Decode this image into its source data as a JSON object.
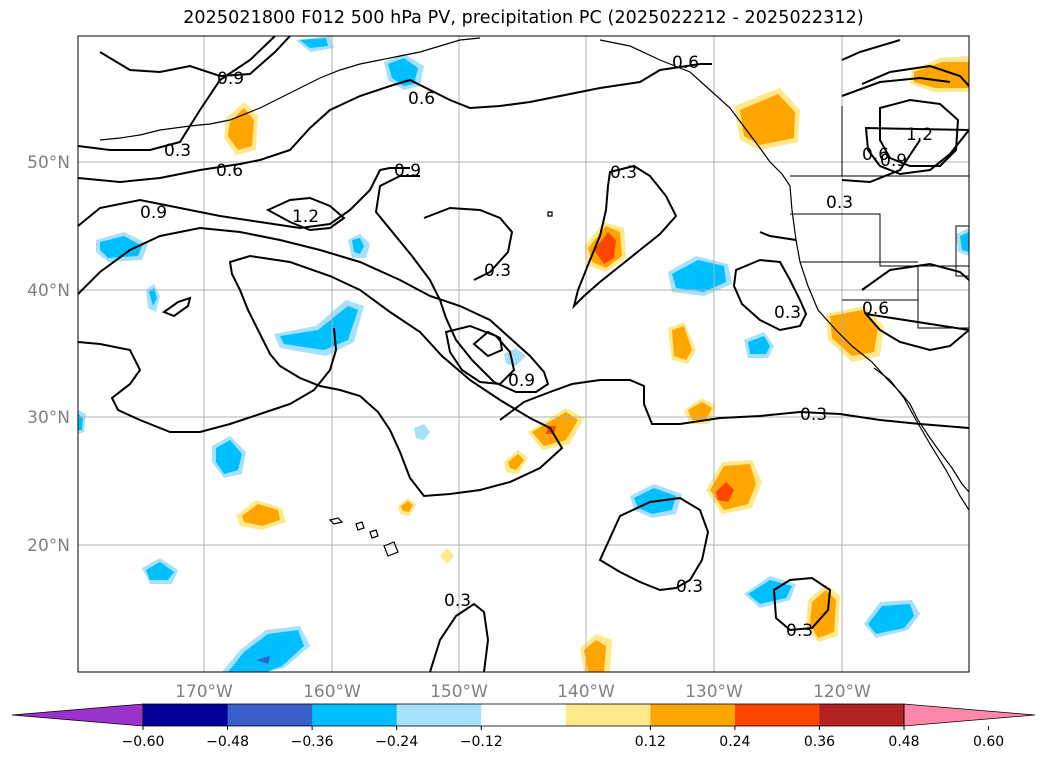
{
  "title": "2025021800 F012 500 hPa PV, precipitation PC (2025022212 - 2025022312)",
  "lat_labels": [
    "50°N",
    "40°N",
    "30°N",
    "20°N"
  ],
  "lon_labels": [
    "170°W",
    "160°W",
    "150°W",
    "140°W",
    "130°W",
    "120°W"
  ],
  "colorbar": {
    "colors": [
      "#9933cc",
      "#000099",
      "#3a5fcd",
      "#00bfff",
      "#a6e0fa",
      "#ffffff",
      "#ffe98c",
      "#ffa500",
      "#ff4500",
      "#b22222",
      "#ff88aa"
    ],
    "tick_labels": [
      "−0.60",
      "−0.48",
      "−0.36",
      "−0.24",
      "−0.12",
      "0.12",
      "0.24",
      "0.36",
      "0.48",
      "0.60"
    ]
  },
  "contour_labels": [
    "0.9",
    "0.3",
    "0.6",
    "0.9",
    "1.2",
    "0.6",
    "0.9",
    "0.3",
    "0.9",
    "0.3",
    "0.6",
    "0.6",
    "0.9",
    "1.2",
    "0.3",
    "0.3",
    "0.6",
    "0.3",
    "0.3",
    "0.3",
    "0.3"
  ]
}
